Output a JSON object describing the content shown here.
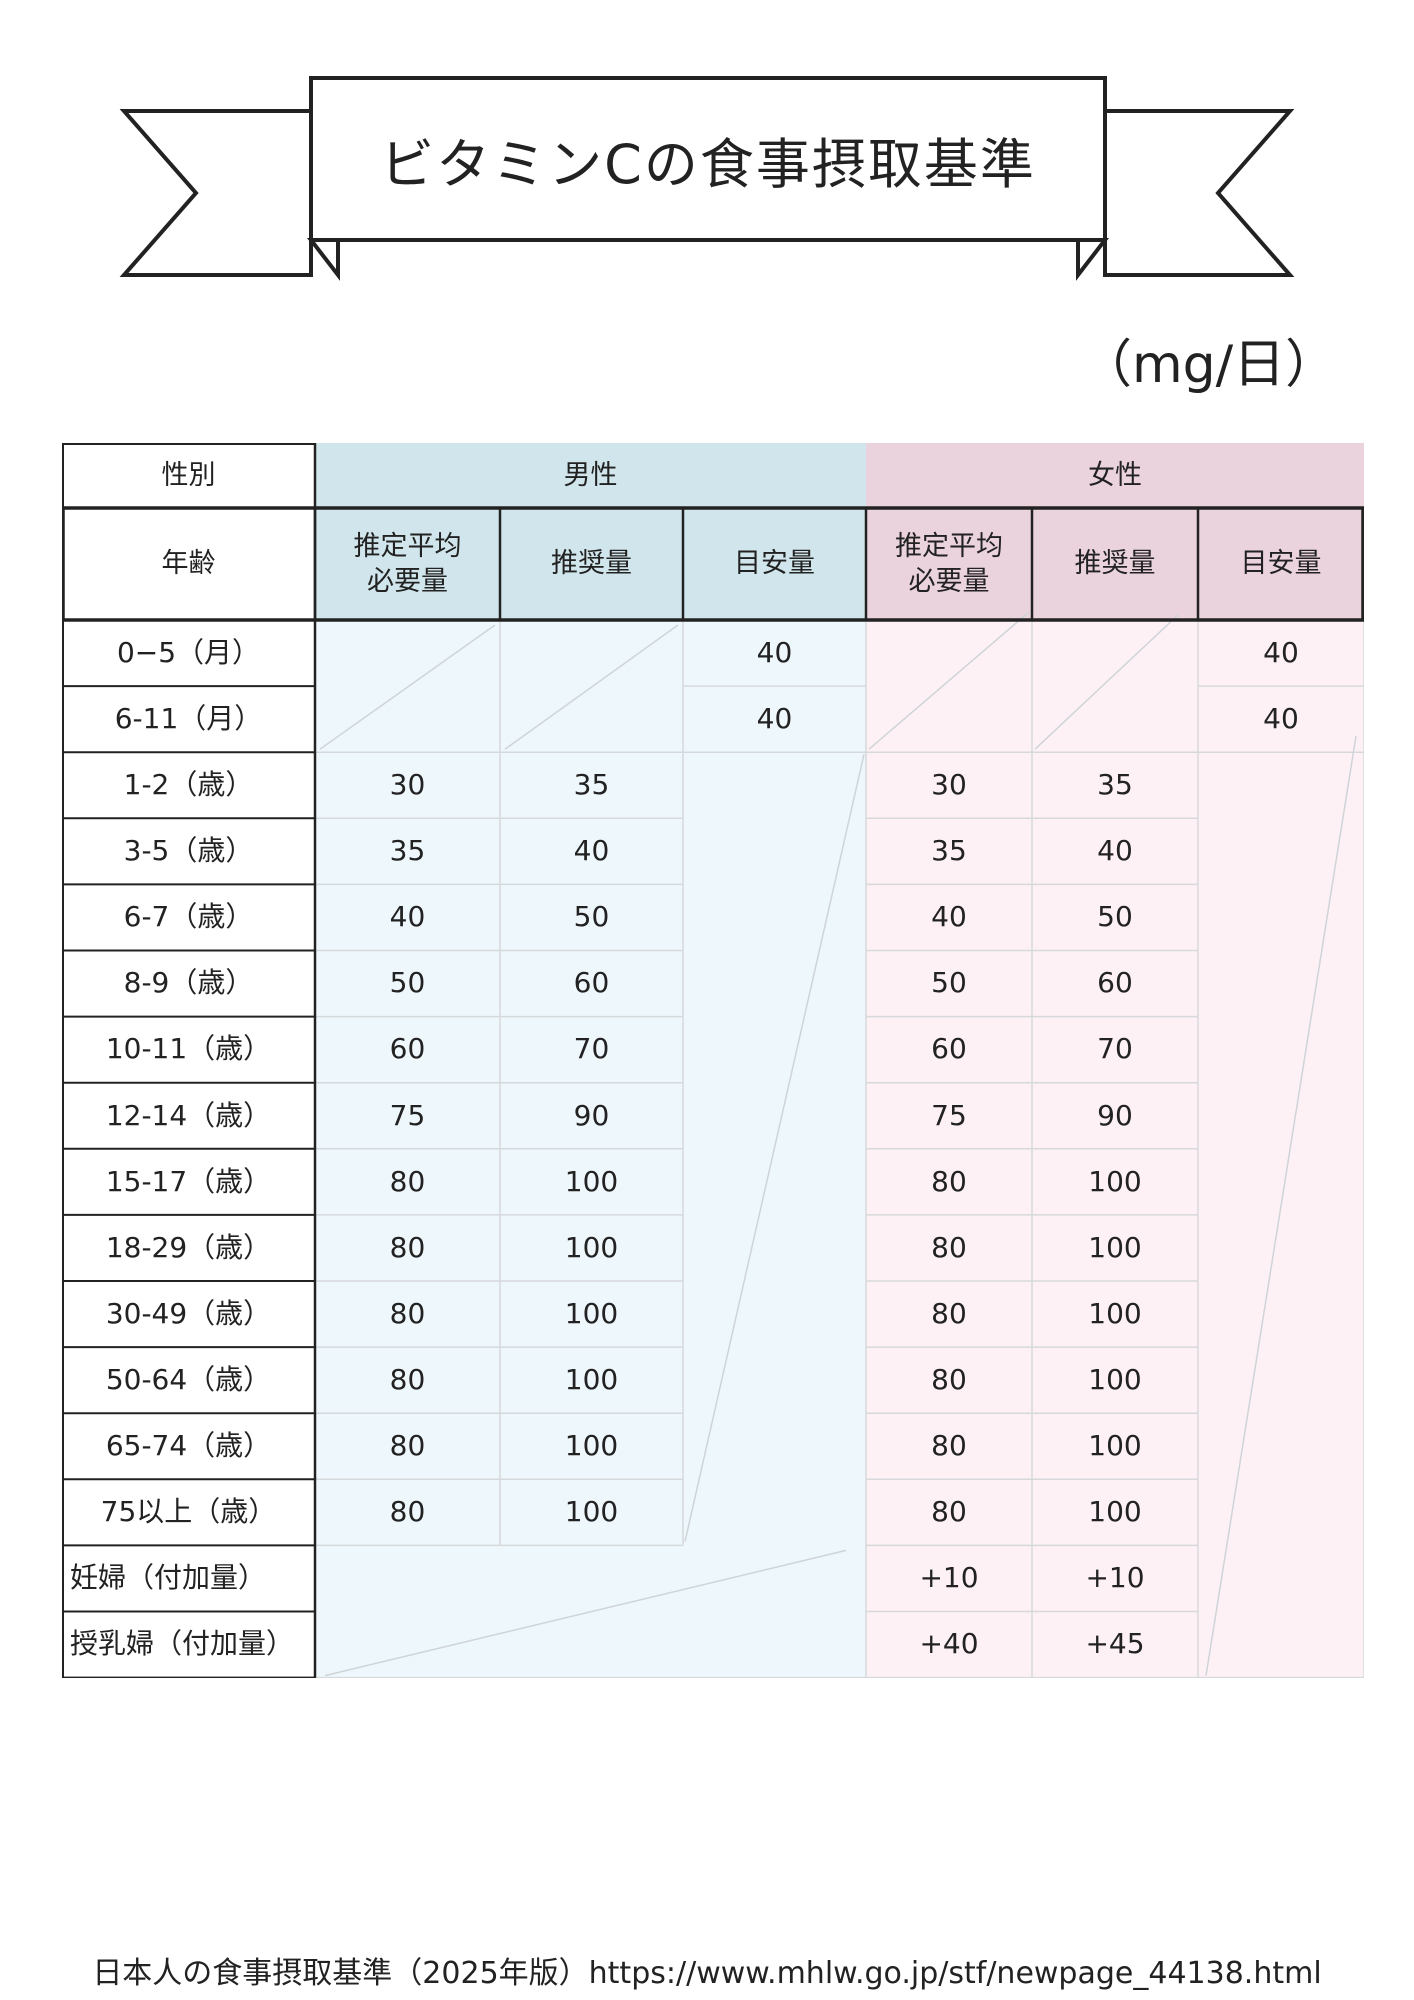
{
  "title": "ビタミンCの食事摂取基準",
  "unit": "（mg/日）",
  "colors": {
    "male_header": "#d1e6ec",
    "female_header": "#ebd3de",
    "male_body": "#eef7fb",
    "female_body": "#fdf1f5",
    "border_dark": "#222222",
    "border_light": "#d6d9dc"
  },
  "table": {
    "sex_label": "性別",
    "male": "男性",
    "female": "女性",
    "age_label": "年齢",
    "columns": [
      "推定平均\n必要量",
      "推奨量",
      "目安量",
      "推定平均\n必要量",
      "推奨量",
      "目安量"
    ],
    "rows": [
      {
        "age": "0−5（月）",
        "m_ear": "",
        "m_rda": "",
        "m_ai": "40",
        "f_ear": "",
        "f_rda": "",
        "f_ai": "40"
      },
      {
        "age": "6-11（月）",
        "m_ear": "",
        "m_rda": "",
        "m_ai": "40",
        "f_ear": "",
        "f_rda": "",
        "f_ai": "40"
      },
      {
        "age": "1-2（歳）",
        "m_ear": "30",
        "m_rda": "35",
        "m_ai": "",
        "f_ear": "30",
        "f_rda": "35",
        "f_ai": ""
      },
      {
        "age": "3-5（歳）",
        "m_ear": "35",
        "m_rda": "40",
        "m_ai": "",
        "f_ear": "35",
        "f_rda": "40",
        "f_ai": ""
      },
      {
        "age": "6-7（歳）",
        "m_ear": "40",
        "m_rda": "50",
        "m_ai": "",
        "f_ear": "40",
        "f_rda": "50",
        "f_ai": ""
      },
      {
        "age": "8-9（歳）",
        "m_ear": "50",
        "m_rda": "60",
        "m_ai": "",
        "f_ear": "50",
        "f_rda": "60",
        "f_ai": ""
      },
      {
        "age": "10-11（歳）",
        "m_ear": "60",
        "m_rda": "70",
        "m_ai": "",
        "f_ear": "60",
        "f_rda": "70",
        "f_ai": ""
      },
      {
        "age": "12-14（歳）",
        "m_ear": "75",
        "m_rda": "90",
        "m_ai": "",
        "f_ear": "75",
        "f_rda": "90",
        "f_ai": ""
      },
      {
        "age": "15-17（歳）",
        "m_ear": "80",
        "m_rda": "100",
        "m_ai": "",
        "f_ear": "80",
        "f_rda": "100",
        "f_ai": ""
      },
      {
        "age": "18-29（歳）",
        "m_ear": "80",
        "m_rda": "100",
        "m_ai": "",
        "f_ear": "80",
        "f_rda": "100",
        "f_ai": ""
      },
      {
        "age": "30-49（歳）",
        "m_ear": "80",
        "m_rda": "100",
        "m_ai": "",
        "f_ear": "80",
        "f_rda": "100",
        "f_ai": ""
      },
      {
        "age": "50-64（歳）",
        "m_ear": "80",
        "m_rda": "100",
        "m_ai": "",
        "f_ear": "80",
        "f_rda": "100",
        "f_ai": ""
      },
      {
        "age": "65-74（歳）",
        "m_ear": "80",
        "m_rda": "100",
        "m_ai": "",
        "f_ear": "80",
        "f_rda": "100",
        "f_ai": ""
      },
      {
        "age": "75以上（歳）",
        "m_ear": "80",
        "m_rda": "100",
        "m_ai": "",
        "f_ear": "80",
        "f_rda": "100",
        "f_ai": ""
      },
      {
        "age": "妊婦（付加量）",
        "m_ear": "",
        "m_rda": "",
        "m_ai": "",
        "f_ear": "+10",
        "f_rda": "+10",
        "f_ai": ""
      },
      {
        "age": "授乳婦（付加量）",
        "m_ear": "",
        "m_rda": "",
        "m_ai": "",
        "f_ear": "+40",
        "f_rda": "+45",
        "f_ai": ""
      }
    ]
  },
  "source": "日本人の食事摂取基準（2025年版）https://www.mhlw.go.jp/stf/newpage_44138.html"
}
